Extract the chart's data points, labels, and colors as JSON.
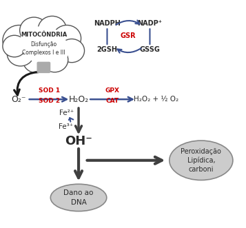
{
  "title": "MITOCÔNDRIA",
  "cloud_text": "Disfunção\nComplexos I e III",
  "o2_label": "O₂⁻",
  "h2o2_label": "H₂O₂",
  "h2o2_o2_label": "H₂O₂ + ½ O₂",
  "sod1_label": "SOD 1",
  "sod2_label": "SOD 2",
  "gpx_label": "GPX",
  "cat_label": "CAT",
  "nadph_label": "NADPH",
  "nadp_label": "NADP⁺",
  "gsh_label": "2GSH",
  "gssg_label": "GSSG",
  "gsr_label": "GSR",
  "fe2_label": "Fe²⁺",
  "fe3_label": "Fe³⁺",
  "oh_label": "OH⁻",
  "perox_label": "Peroxidação\nLipídica,\ncarboni",
  "dna_label": "Dano ao\nDNA",
  "blue_color": "#3a5090",
  "red_color": "#cc0000",
  "dark_color": "#2a2a2a",
  "ellipse_fill": "#cccccc",
  "ellipse_edge": "#888888",
  "cloud_edge": "#555555",
  "cloud_fill": "#ffffff",
  "arrow_dark": "#404040"
}
